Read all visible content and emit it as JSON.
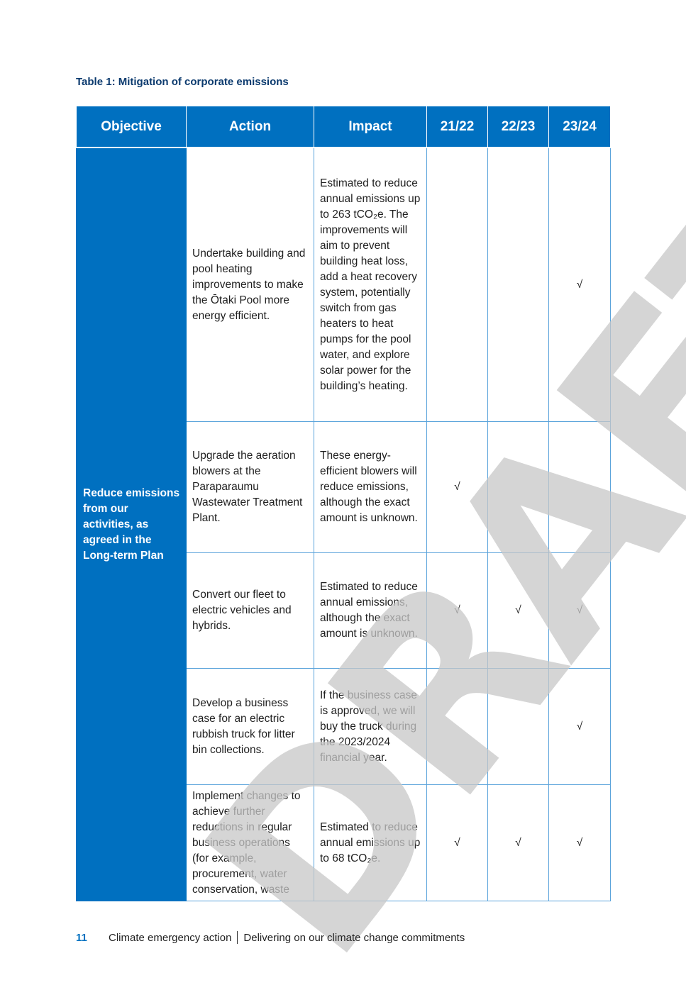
{
  "caption": "Table 1: Mitigation of corporate emissions",
  "headers": [
    "Objective",
    "Action",
    "Impact",
    "21/22",
    "22/23",
    "23/24"
  ],
  "objective": "Reduce emissions from our activities, as agreed in the Long-term Plan",
  "rows": [
    {
      "action": "Undertake building and pool heating improvements to make the Ōtaki Pool more energy efficient.",
      "impact": "Estimated to reduce annual emissions up to 263 tCO₂e. The improvements will aim to prevent building heat loss, add a heat recovery system, potentially switch from gas heaters to heat pumps for the pool water, and explore solar power for the building’s heating.",
      "y2122": "",
      "y2223": "",
      "y2324": "√"
    },
    {
      "action": "Upgrade the aeration blowers at the Paraparaumu Wastewater Treatment Plant.",
      "impact": "These energy-efficient blowers will reduce emissions, although the exact amount is unknown.",
      "y2122": "√",
      "y2223": "",
      "y2324": ""
    },
    {
      "action": "Convert our fleet to electric vehicles and hybrids.",
      "impact": "Estimated to reduce annual emissions, although the exact amount is unknown.",
      "y2122": "√",
      "y2223": "√",
      "y2324": "√"
    },
    {
      "action": "Develop a business case for an electric rubbish truck for litter bin collections.",
      "impact": "If the business case is approved, we will buy the truck during the 2023/2024 financial year.",
      "y2122": "",
      "y2223": "",
      "y2324": "√"
    },
    {
      "action": "Implement changes to achieve further reductions in regular business operations (for example, procurement, water conservation, waste",
      "impact": "Estimated to reduce annual emissions up to 68 tCO₂e.",
      "y2122": "√",
      "y2223": "√",
      "y2324": "√"
    }
  ],
  "watermark": "DRAFT",
  "footer": {
    "page_number": "11",
    "section": "Climate emergency action",
    "subtitle": "Delivering on our climate change commitments"
  }
}
